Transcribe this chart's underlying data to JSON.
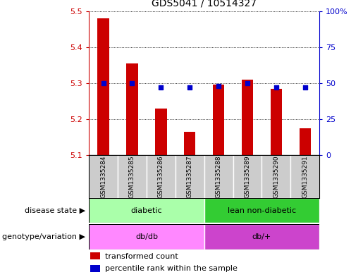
{
  "title": "GDS5041 / 10514327",
  "samples": [
    "GSM1335284",
    "GSM1335285",
    "GSM1335286",
    "GSM1335287",
    "GSM1335288",
    "GSM1335289",
    "GSM1335290",
    "GSM1335291"
  ],
  "transformed_count": [
    5.48,
    5.355,
    5.23,
    5.165,
    5.295,
    5.31,
    5.285,
    5.175
  ],
  "percentile_rank": [
    50,
    50,
    47,
    47,
    48,
    50,
    47,
    47
  ],
  "ylim_left": [
    5.1,
    5.5
  ],
  "ylim_right": [
    0,
    100
  ],
  "yticks_left": [
    5.1,
    5.2,
    5.3,
    5.4,
    5.5
  ],
  "yticks_right": [
    0,
    25,
    50,
    75,
    100
  ],
  "disease_state": [
    {
      "label": "diabetic",
      "start": 0,
      "end": 4,
      "color": "#AAFFAA"
    },
    {
      "label": "lean non-diabetic",
      "start": 4,
      "end": 8,
      "color": "#33CC33"
    }
  ],
  "genotype": [
    {
      "label": "db/db",
      "start": 0,
      "end": 4,
      "color": "#FF88FF"
    },
    {
      "label": "db/+",
      "start": 4,
      "end": 8,
      "color": "#CC44CC"
    }
  ],
  "bar_color": "#CC0000",
  "dot_color": "#0000CC",
  "grid_color": "#000000",
  "tick_color_left": "#CC0000",
  "tick_color_right": "#0000CC",
  "sample_bg": "#CCCCCC",
  "legend_tc": "transformed count",
  "legend_pr": "percentile rank within the sample",
  "fig_width": 5.15,
  "fig_height": 3.93
}
